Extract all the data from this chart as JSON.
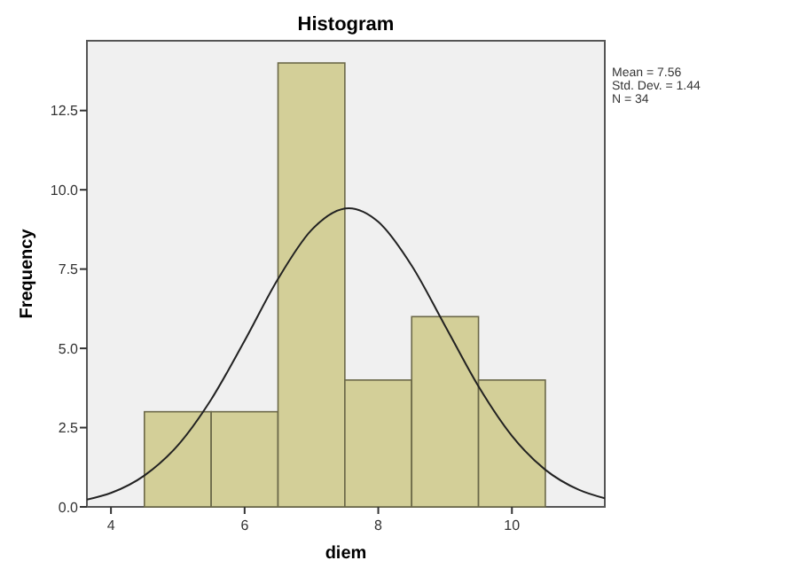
{
  "chart_data": {
    "type": "histogram",
    "title": "Histogram",
    "xlabel": "diem",
    "ylabel": "Frequency",
    "bins": [
      4.5,
      5.5,
      6.5,
      7.5,
      8.5,
      9.5,
      10.5
    ],
    "values": [
      3,
      3,
      14,
      4,
      6,
      4
    ],
    "color": "#d3cf98",
    "series": [
      {
        "type": "line",
        "color": "#222222",
        "x": [
          3.64,
          4,
          4.5,
          5,
          5.5,
          6,
          6.5,
          7,
          7.56,
          8,
          8.5,
          9,
          9.5,
          10,
          10.5,
          11,
          11.39
        ],
        "values": [
          0.23,
          0.44,
          0.99,
          1.94,
          3.39,
          5.24,
          7.19,
          8.73,
          9.42,
          8.99,
          7.61,
          5.71,
          3.8,
          2.24,
          1.17,
          0.54,
          0.27
        ]
      }
    ],
    "xlim": [
      3.64,
      11.39
    ],
    "xticks": [
      4,
      6,
      8,
      10
    ],
    "ylim": [
      0,
      14.7
    ],
    "yticks": [
      {
        "value": 0,
        "label": "0.0"
      },
      2.5,
      {
        "value": 5,
        "label": "5.0"
      },
      7.5,
      {
        "value": 10,
        "label": "10.0"
      },
      12.5
    ],
    "annotations": [
      "Mean = 7.56",
      "Std. Dev. = 1.44",
      "N = 34"
    ]
  }
}
